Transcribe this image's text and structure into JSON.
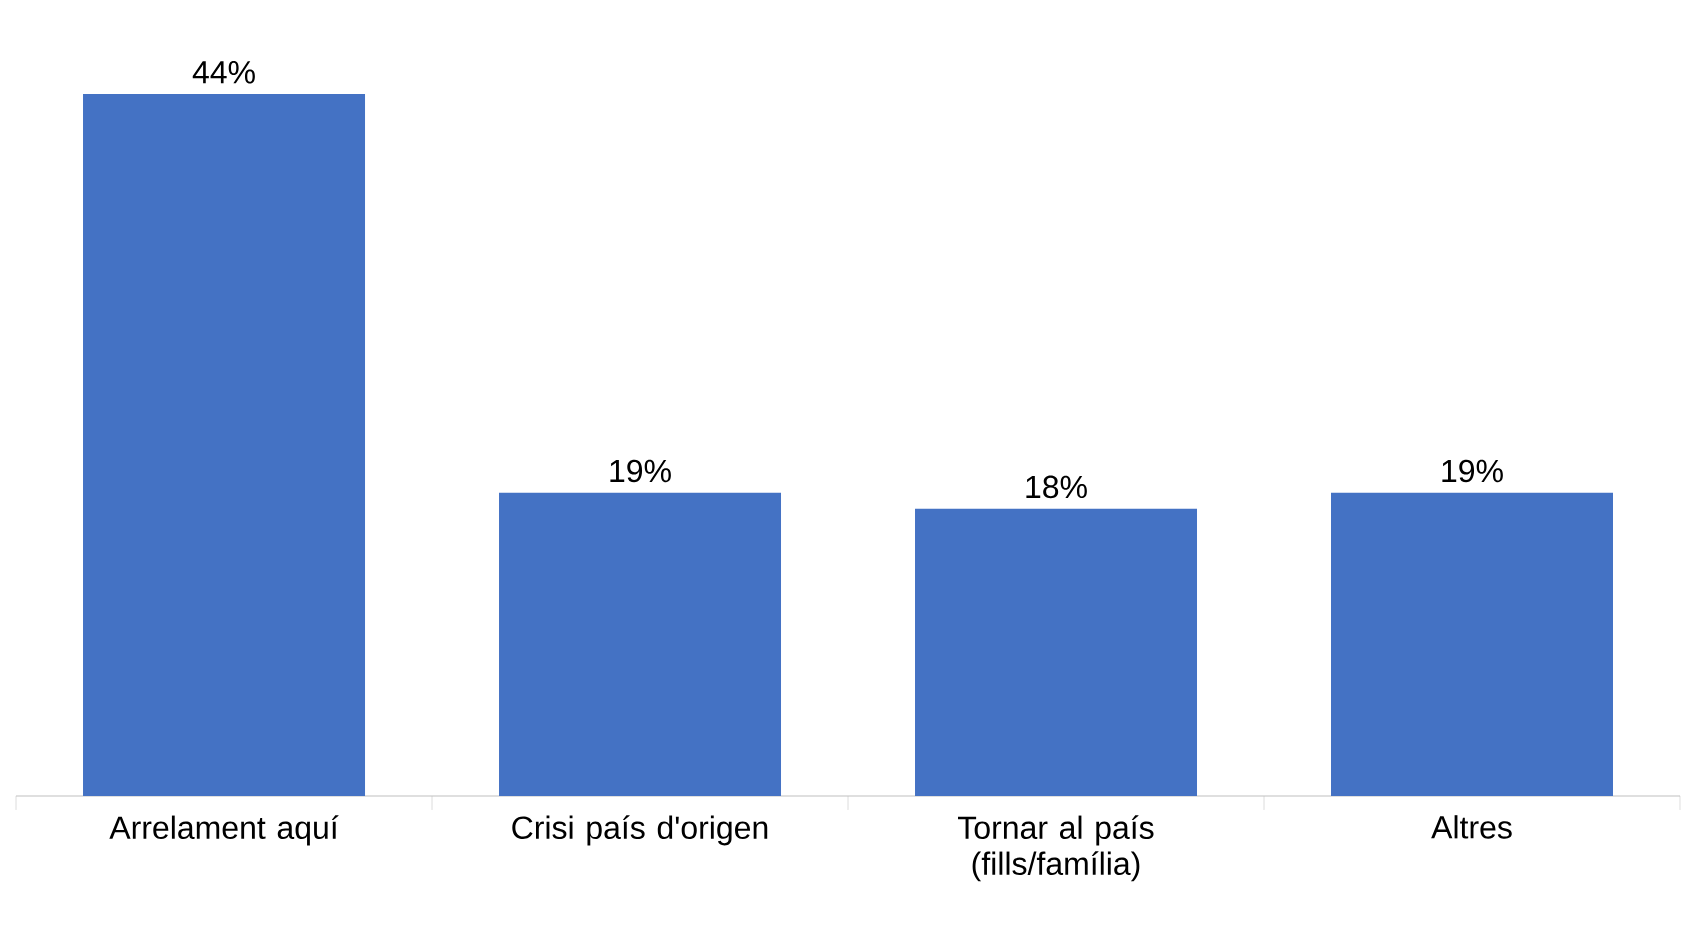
{
  "chart_data": {
    "type": "bar",
    "categories": [
      "Arrelament aquí",
      "Crisi país d'origen",
      "Tornar al país (fills/família)",
      "Altres"
    ],
    "values": [
      44,
      19,
      18,
      19
    ],
    "value_labels": [
      "44%",
      "19%",
      "18%",
      "19%"
    ],
    "color": "#4472c4"
  }
}
